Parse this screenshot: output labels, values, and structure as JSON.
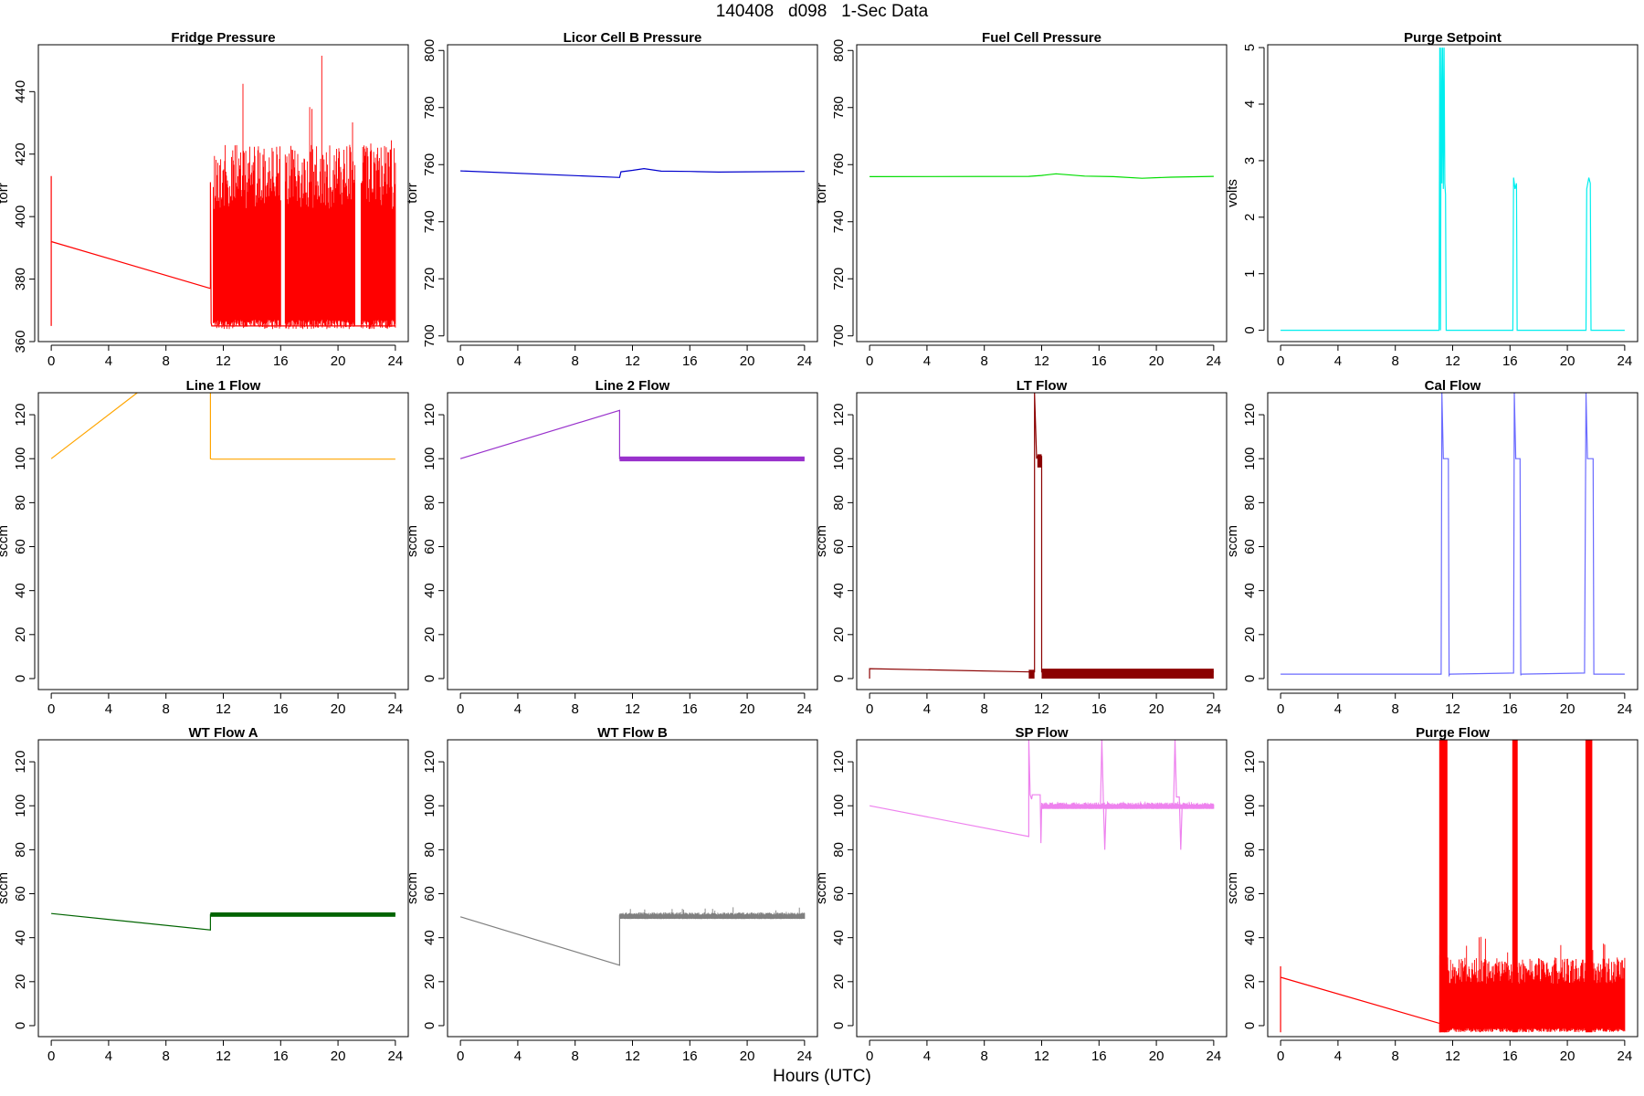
{
  "title": "140408   d098   1-Sec Data",
  "xlabel": "Hours (UTC)",
  "chart_data": [
    {
      "type": "line",
      "title": "Fridge Pressure",
      "ylabel": "torr",
      "color": "#ff0000",
      "xlim": [
        0,
        24
      ],
      "ylim": [
        360,
        455
      ],
      "yticks": [
        360,
        380,
        400,
        420,
        440
      ],
      "xticks": [
        0,
        4,
        8,
        12,
        16,
        20,
        24
      ],
      "series": [
        {
          "x": [
            0,
            0,
            0,
            11.1,
            11.1,
            11.15,
            11.2,
            24
          ],
          "y": [
            365,
            413,
            392,
            377,
            411,
            366,
            365,
            365
          ]
        }
      ],
      "noise": [
        {
          "x0": 11.3,
          "x1": 24,
          "lo": 364,
          "hi": 423,
          "peak": 455,
          "gaps": [
            [
              16.0,
              16.3
            ],
            [
              21.2,
              21.6
            ]
          ]
        }
      ]
    },
    {
      "type": "line",
      "title": "Licor Cell B Pressure",
      "ylabel": "torr",
      "color": "#0000cd",
      "xlim": [
        0,
        24
      ],
      "ylim": [
        698,
        802
      ],
      "yticks": [
        700,
        720,
        740,
        760,
        780,
        800
      ],
      "xticks": [
        0,
        4,
        8,
        12,
        16,
        20,
        24
      ],
      "series": [
        {
          "x": [
            0,
            11.1,
            11.2,
            12,
            12.8,
            14,
            16,
            18,
            20,
            24
          ],
          "y": [
            757.8,
            755.5,
            757.5,
            758,
            758.6,
            757.7,
            757.6,
            757.4,
            757.5,
            757.6
          ]
        }
      ]
    },
    {
      "type": "line",
      "title": "Fuel Cell Pressure",
      "ylabel": "torr",
      "color": "#00dd00",
      "xlim": [
        0,
        24
      ],
      "ylim": [
        698,
        802
      ],
      "yticks": [
        700,
        720,
        740,
        760,
        780,
        800
      ],
      "xticks": [
        0,
        4,
        8,
        12,
        16,
        20,
        24
      ],
      "series": [
        {
          "x": [
            0,
            11.1,
            12,
            13,
            15,
            17,
            19,
            21,
            24
          ],
          "y": [
            755.8,
            755.9,
            756.2,
            756.8,
            756,
            755.8,
            755.2,
            755.6,
            755.9
          ]
        }
      ]
    },
    {
      "type": "line",
      "title": "Purge Setpoint",
      "ylabel": "volts",
      "color": "#00eeee",
      "xlim": [
        0,
        24
      ],
      "ylim": [
        -0.2,
        5.05
      ],
      "yticks": [
        0,
        1,
        2,
        3,
        4,
        5
      ],
      "xticks": [
        0,
        4,
        8,
        12,
        16,
        20,
        24
      ],
      "series": [
        {
          "x": [
            0,
            11.05,
            11.1,
            11.15,
            11.2,
            11.25,
            11.3,
            11.35,
            11.4,
            11.45,
            11.5,
            11.55,
            11.6,
            16.2,
            16.25,
            16.35,
            16.45,
            16.5,
            21.3,
            21.35,
            21.5,
            21.6,
            21.65,
            24
          ],
          "y": [
            0,
            0,
            5,
            0,
            5,
            2.6,
            5,
            2.5,
            5,
            2.6,
            2.4,
            0,
            0,
            0,
            2.7,
            2.5,
            2.6,
            0,
            0,
            2.5,
            2.7,
            2.6,
            0,
            0
          ]
        }
      ]
    },
    {
      "type": "line",
      "title": "Line 1 Flow",
      "ylabel": "sccm",
      "color": "#ffa500",
      "xlim": [
        0,
        24
      ],
      "ylim": [
        -5,
        130
      ],
      "yticks": [
        0,
        20,
        40,
        60,
        80,
        100,
        120
      ],
      "xticks": [
        0,
        4,
        8,
        12,
        16,
        20,
        24
      ],
      "series": [
        {
          "x": [
            0,
            6
          ],
          "y": [
            100,
            130
          ]
        },
        {
          "x": [
            11.1,
            11.1,
            11.2,
            24
          ],
          "y": [
            130,
            100,
            99.8,
            99.8
          ]
        }
      ]
    },
    {
      "type": "line",
      "title": "Line 2 Flow",
      "ylabel": "sccm",
      "color": "#9932cc",
      "xlim": [
        0,
        24
      ],
      "ylim": [
        -5,
        130
      ],
      "yticks": [
        0,
        20,
        40,
        60,
        80,
        100,
        120
      ],
      "xticks": [
        0,
        4,
        8,
        12,
        16,
        20,
        24
      ],
      "series": [
        {
          "x": [
            0,
            11.1,
            11.1,
            24
          ],
          "y": [
            100,
            122,
            100,
            100
          ]
        }
      ],
      "band": [
        {
          "x0": 11.1,
          "x1": 24,
          "lo": 98.8,
          "hi": 101
        }
      ]
    },
    {
      "type": "line",
      "title": "LT Flow",
      "ylabel": "sccm",
      "color": "#8b0000",
      "xlim": [
        0,
        24
      ],
      "ylim": [
        -5,
        130
      ],
      "yticks": [
        0,
        20,
        40,
        60,
        80,
        100,
        120
      ],
      "xticks": [
        0,
        4,
        8,
        12,
        16,
        20,
        24
      ],
      "series": [
        {
          "x": [
            0,
            0,
            11.2,
            11.5,
            11.5,
            11.65,
            11.7,
            12.0,
            12.0,
            24
          ],
          "y": [
            0,
            4.5,
            3,
            3,
            130,
            100,
            101,
            101,
            3,
            3
          ]
        }
      ],
      "band": [
        {
          "x0": 11.1,
          "x1": 11.5,
          "lo": 0,
          "hi": 4
        },
        {
          "x0": 11.7,
          "x1": 12.0,
          "lo": 96,
          "hi": 102
        },
        {
          "x0": 12.0,
          "x1": 24,
          "lo": 0,
          "hi": 4.5
        }
      ]
    },
    {
      "type": "line",
      "title": "Cal Flow",
      "ylabel": "sccm",
      "color": "#00008b",
      "accent": "#6b6bff",
      "xlim": [
        0,
        24
      ],
      "ylim": [
        -5,
        130
      ],
      "yticks": [
        0,
        20,
        40,
        60,
        80,
        100,
        120
      ],
      "xticks": [
        0,
        4,
        8,
        12,
        16,
        20,
        24
      ],
      "series": [
        {
          "x": [
            0,
            11.2,
            11.25,
            11.35,
            11.7,
            11.75,
            11.8,
            16.25,
            16.3,
            16.4,
            16.7,
            16.75,
            16.8,
            21.2,
            21.3,
            21.4,
            21.8,
            21.85,
            22,
            24
          ],
          "y": [
            2,
            2,
            130,
            100,
            100,
            1.5,
            2,
            2.5,
            130,
            100,
            100,
            1.5,
            2,
            2.5,
            130,
            100,
            100,
            2,
            2,
            2
          ]
        }
      ]
    },
    {
      "type": "line",
      "title": "WT Flow A",
      "ylabel": "sccm",
      "color": "#006400",
      "xlim": [
        0,
        24
      ],
      "ylim": [
        -5,
        130
      ],
      "yticks": [
        0,
        20,
        40,
        60,
        80,
        100,
        120
      ],
      "xticks": [
        0,
        4,
        8,
        12,
        16,
        20,
        24
      ],
      "series": [
        {
          "x": [
            0,
            11.1,
            11.1,
            24
          ],
          "y": [
            51,
            43.5,
            50.5,
            50.5
          ]
        }
      ],
      "band": [
        {
          "x0": 11.1,
          "x1": 24,
          "lo": 49.5,
          "hi": 51.5
        }
      ]
    },
    {
      "type": "line",
      "title": "WT Flow B",
      "ylabel": "sccm",
      "color": "#808080",
      "xlim": [
        0,
        24
      ],
      "ylim": [
        -5,
        130
      ],
      "yticks": [
        0,
        20,
        40,
        60,
        80,
        100,
        120
      ],
      "xticks": [
        0,
        4,
        8,
        12,
        16,
        20,
        24
      ],
      "series": [
        {
          "x": [
            0,
            11.1,
            11.1,
            24
          ],
          "y": [
            49.5,
            27.5,
            50,
            49.5
          ]
        }
      ],
      "noise": [
        {
          "x0": 11.1,
          "x1": 24,
          "lo": 48.5,
          "hi": 51.5,
          "peak": 54,
          "gaps": []
        }
      ]
    },
    {
      "type": "line",
      "title": "SP Flow",
      "ylabel": "sccm",
      "color": "#ee82ee",
      "xlim": [
        0,
        24
      ],
      "ylim": [
        -5,
        130
      ],
      "yticks": [
        0,
        20,
        40,
        60,
        80,
        100,
        120
      ],
      "xticks": [
        0,
        4,
        8,
        12,
        16,
        20,
        24
      ],
      "series": [
        {
          "x": [
            0,
            11.1,
            11.1,
            11.2,
            11.3,
            11.35,
            11.9,
            11.95,
            12.0,
            16.1,
            16.2,
            16.3,
            16.4,
            16.5,
            21.2,
            21.3,
            21.4,
            21.6,
            21.7,
            21.8,
            24
          ],
          "y": [
            100,
            86,
            130,
            105,
            103,
            105,
            105,
            83,
            100,
            100,
            130,
            103,
            80,
            100,
            100,
            130,
            104,
            104,
            80,
            100,
            100
          ]
        }
      ],
      "noise": [
        {
          "x0": 12.0,
          "x1": 24,
          "lo": 98.5,
          "hi": 101.5,
          "peak": 102,
          "gaps": []
        }
      ]
    },
    {
      "type": "line",
      "title": "Purge Flow",
      "ylabel": "sccm",
      "color": "#ff0000",
      "xlim": [
        0,
        24
      ],
      "ylim": [
        -5,
        130
      ],
      "yticks": [
        0,
        20,
        40,
        60,
        80,
        100,
        120
      ],
      "xticks": [
        0,
        4,
        8,
        12,
        16,
        20,
        24
      ],
      "series": [
        {
          "x": [
            0,
            0,
            0,
            11.1,
            11.1
          ],
          "y": [
            -3,
            27,
            22,
            1,
            -3
          ]
        }
      ],
      "noise": [
        {
          "x0": 11.1,
          "x1": 24,
          "lo": -3,
          "hi": 31,
          "peak": 42,
          "gaps": []
        }
      ],
      "spikes": [
        {
          "x0": 11.1,
          "x1": 11.6,
          "lo": -3,
          "hi": 130
        },
        {
          "x0": 16.2,
          "x1": 16.5,
          "lo": -3,
          "hi": 130
        },
        {
          "x0": 21.3,
          "x1": 21.7,
          "lo": -3,
          "hi": 130
        }
      ]
    }
  ]
}
